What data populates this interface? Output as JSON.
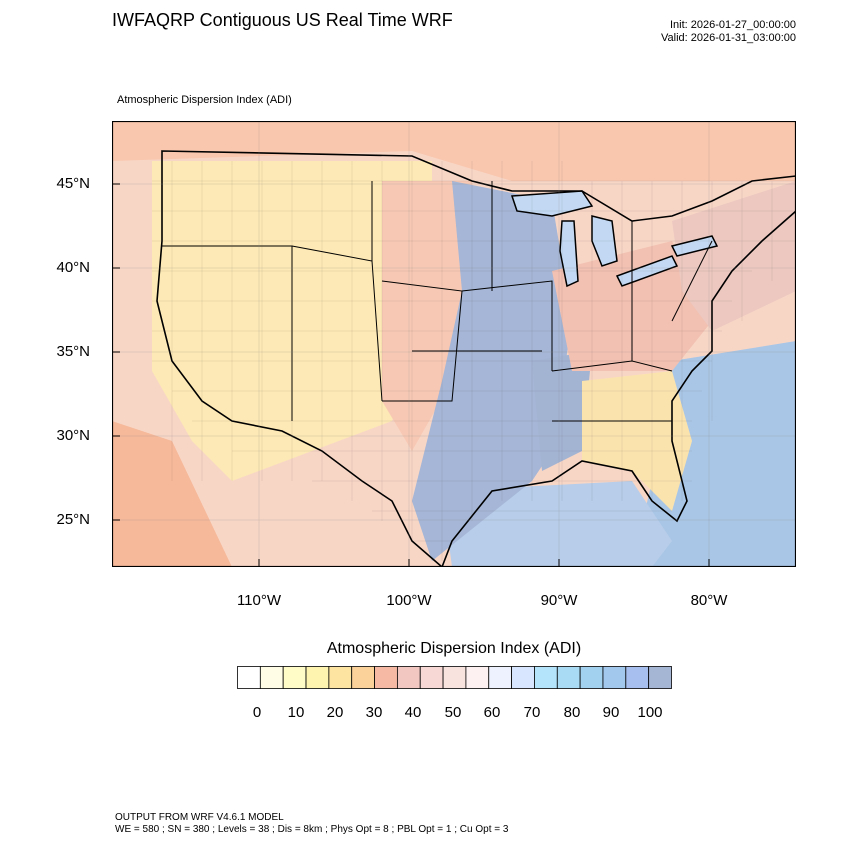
{
  "title": "IWFAQRP Contiguous US Real Time WRF",
  "init": "Init: 2026-01-27_00:00:00",
  "valid": "Valid: 2026-01-31_03:00:00",
  "map_subtitle": "Atmospheric Dispersion Index   (ADI)",
  "lat_labels": [
    "45°N",
    "40°N",
    "35°N",
    "30°N",
    "25°N"
  ],
  "lon_labels": [
    "110°W",
    "100°W",
    "90°W",
    "80°W"
  ],
  "colorbar": {
    "title": "Atmospheric Dispersion Index  (ADI)",
    "tick_labels": [
      "0",
      "10",
      "20",
      "30",
      "40",
      "50",
      "60",
      "70",
      "80",
      "90",
      "100"
    ],
    "colors": [
      "#ffffff",
      "#fffde6",
      "#fffcc8",
      "#fff3b0",
      "#fde4a0",
      "#fbd29a",
      "#f6b9a4",
      "#f3c7c1",
      "#f7d8d4",
      "#f9e3df",
      "#fdf1f1",
      "#eef2ff",
      "#d9e6ff",
      "#b3e4fb",
      "#a9dcf4",
      "#a2d0ef",
      "#a3c8ee",
      "#a7bfef",
      "#a5b5d4"
    ]
  },
  "footer": {
    "line1": "OUTPUT FROM WRF V4.6.1 MODEL",
    "line2": "WE = 580 ; SN = 380 ; Levels = 38 ; Dis = 8km ; Phys Opt = 8 ; PBL Opt = 1 ; Cu Opt = 3"
  }
}
